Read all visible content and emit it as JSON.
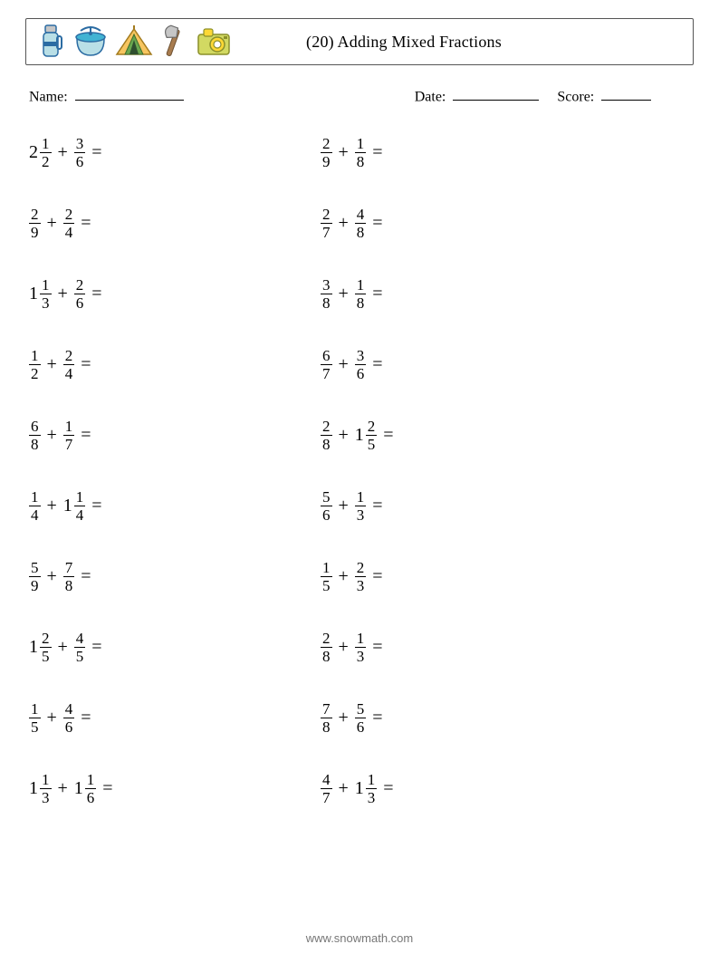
{
  "header": {
    "title": "(20) Adding Mixed Fractions",
    "icons": [
      "thermos-icon",
      "cooking-pot-icon",
      "tent-icon",
      "axe-icon",
      "camera-icon"
    ]
  },
  "meta": {
    "name_label": "Name:",
    "date_label": "Date:",
    "score_label": "Score:"
  },
  "footer": "www.snowmath.com",
  "colors": {
    "thermos_body": "#b9dfe6",
    "thermos_cap": "#c6c6c6",
    "pot_body": "#b9dfe6",
    "pot_lid": "#41b3d3",
    "tent_outer": "#f7c560",
    "tent_inner": "#6aa84f",
    "axe_handle": "#a87c4f",
    "axe_blade": "#c6c6c6",
    "camera_body": "#d2d962",
    "camera_accent": "#fdd835"
  },
  "problems": [
    [
      {
        "a": {
          "whole": 2,
          "num": 1,
          "den": 2
        },
        "b": {
          "num": 3,
          "den": 6
        }
      },
      {
        "a": {
          "num": 2,
          "den": 9
        },
        "b": {
          "num": 1,
          "den": 8
        }
      }
    ],
    [
      {
        "a": {
          "num": 2,
          "den": 9
        },
        "b": {
          "num": 2,
          "den": 4
        }
      },
      {
        "a": {
          "num": 2,
          "den": 7
        },
        "b": {
          "num": 4,
          "den": 8
        }
      }
    ],
    [
      {
        "a": {
          "whole": 1,
          "num": 1,
          "den": 3
        },
        "b": {
          "num": 2,
          "den": 6
        }
      },
      {
        "a": {
          "num": 3,
          "den": 8
        },
        "b": {
          "num": 1,
          "den": 8
        }
      }
    ],
    [
      {
        "a": {
          "num": 1,
          "den": 2
        },
        "b": {
          "num": 2,
          "den": 4
        }
      },
      {
        "a": {
          "num": 6,
          "den": 7
        },
        "b": {
          "num": 3,
          "den": 6
        }
      }
    ],
    [
      {
        "a": {
          "num": 6,
          "den": 8
        },
        "b": {
          "num": 1,
          "den": 7
        }
      },
      {
        "a": {
          "num": 2,
          "den": 8
        },
        "b": {
          "whole": 1,
          "num": 2,
          "den": 5
        }
      }
    ],
    [
      {
        "a": {
          "num": 1,
          "den": 4
        },
        "b": {
          "whole": 1,
          "num": 1,
          "den": 4
        }
      },
      {
        "a": {
          "num": 5,
          "den": 6
        },
        "b": {
          "num": 1,
          "den": 3
        }
      }
    ],
    [
      {
        "a": {
          "num": 5,
          "den": 9
        },
        "b": {
          "num": 7,
          "den": 8
        }
      },
      {
        "a": {
          "num": 1,
          "den": 5
        },
        "b": {
          "num": 2,
          "den": 3
        }
      }
    ],
    [
      {
        "a": {
          "whole": 1,
          "num": 2,
          "den": 5
        },
        "b": {
          "num": 4,
          "den": 5
        }
      },
      {
        "a": {
          "num": 2,
          "den": 8
        },
        "b": {
          "num": 1,
          "den": 3
        }
      }
    ],
    [
      {
        "a": {
          "num": 1,
          "den": 5
        },
        "b": {
          "num": 4,
          "den": 6
        }
      },
      {
        "a": {
          "num": 7,
          "den": 8
        },
        "b": {
          "num": 5,
          "den": 6
        }
      }
    ],
    [
      {
        "a": {
          "whole": 1,
          "num": 1,
          "den": 3
        },
        "b": {
          "whole": 1,
          "num": 1,
          "den": 6
        }
      },
      {
        "a": {
          "num": 4,
          "den": 7
        },
        "b": {
          "whole": 1,
          "num": 1,
          "den": 3
        }
      }
    ]
  ]
}
